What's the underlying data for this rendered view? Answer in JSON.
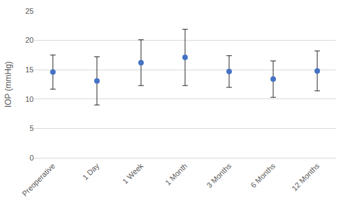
{
  "chart_data": {
    "type": "scatter",
    "y_label": "IOP (mmHg)",
    "categories": [
      "Preoperative",
      "1 Day",
      "1 Week",
      "1 Month",
      "3 Months",
      "6 Months",
      "12 Months"
    ],
    "values": [
      14.6,
      13.1,
      16.2,
      17.1,
      14.7,
      13.4,
      14.8
    ],
    "errors": [
      2.9,
      4.1,
      3.9,
      4.8,
      2.7,
      3.1,
      3.4
    ],
    "color": "#4472c4",
    "marker": "circle",
    "ylim": [
      0,
      25
    ],
    "yticks": [
      0,
      5,
      10,
      15,
      20,
      25
    ],
    "grid": true
  }
}
